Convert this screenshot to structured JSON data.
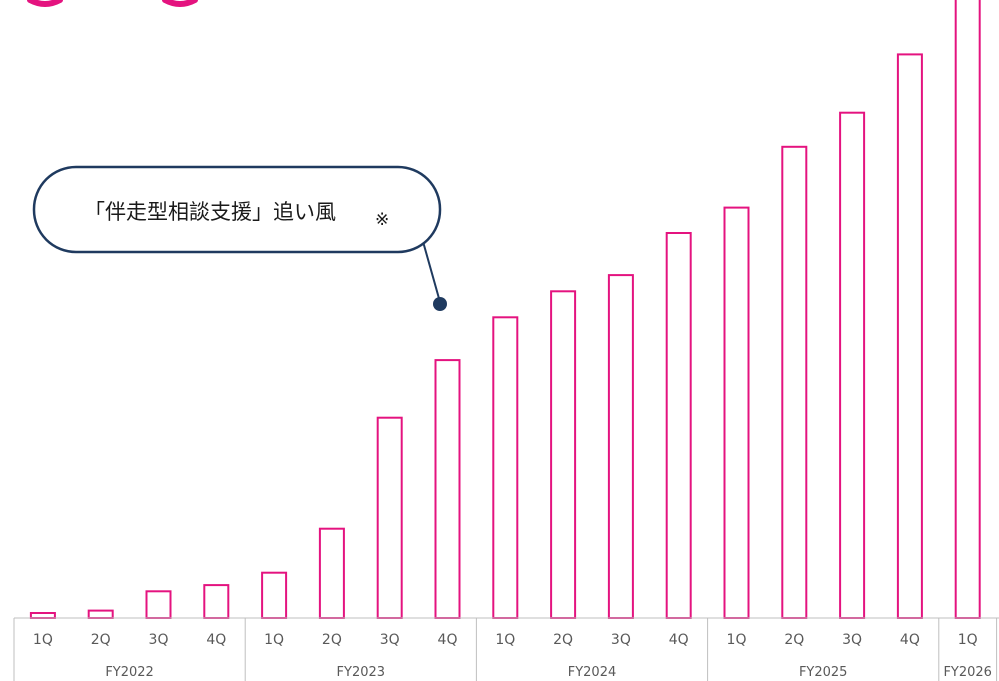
{
  "chart_data": {
    "type": "bar",
    "title": "",
    "xlabel": "",
    "ylabel": "",
    "ylim": [
      0,
      100
    ],
    "grid": false,
    "legend": "none",
    "colors": {
      "bar_stroke": "#e4137f",
      "bar_fill": "#ffffff",
      "axis": "#bfbfbf",
      "axis_text": "#595959",
      "callout": "#1f3a5f"
    },
    "categories": [
      "1Q",
      "2Q",
      "3Q",
      "4Q",
      "1Q",
      "2Q",
      "3Q",
      "4Q",
      "1Q",
      "2Q",
      "3Q",
      "4Q",
      "1Q",
      "2Q",
      "3Q",
      "4Q",
      "1Q"
    ],
    "values": [
      0.8,
      1.2,
      4.3,
      5.3,
      7.3,
      14.4,
      32.3,
      41.6,
      48.5,
      52.7,
      55.3,
      62.1,
      66.2,
      76.0,
      81.5,
      90.9,
      100
    ],
    "groups": [
      {
        "label": "FY2022",
        "count": 4
      },
      {
        "label": "FY2023",
        "count": 4
      },
      {
        "label": "FY2024",
        "count": 4
      },
      {
        "label": "FY2025",
        "count": 4
      },
      {
        "label": "FY2026",
        "count": 1
      }
    ],
    "annotations": [
      {
        "text": "「伴走型相談支援」追い風",
        "mark": "※",
        "points_to_category_index": 7
      }
    ]
  }
}
